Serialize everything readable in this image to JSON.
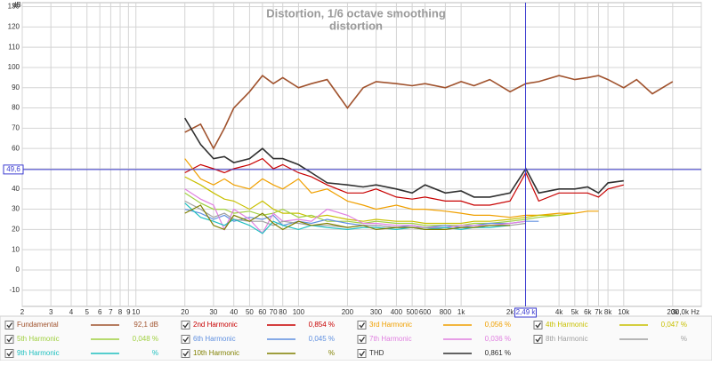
{
  "chart_data": {
    "type": "line",
    "title": "Distortion, 1/6 octave smoothing",
    "subtitle": "distortion",
    "y_unit": "dB",
    "xscale": "log",
    "xlim": [
      2,
      30000
    ],
    "ylim": [
      -18,
      132
    ],
    "grid": true,
    "xticks": [
      2,
      3,
      4,
      5,
      6,
      7,
      8,
      9,
      10,
      20,
      30,
      40,
      50,
      60,
      70,
      80,
      100,
      200,
      300,
      400,
      500,
      600,
      800,
      {
        "value": 1000,
        "label": "1k"
      },
      {
        "value": 2000,
        "label": "2k"
      },
      {
        "value": 4000,
        "label": "4k"
      },
      {
        "value": 5000,
        "label": "5k"
      },
      {
        "value": 6000,
        "label": "6k"
      },
      {
        "value": 7000,
        "label": "7k"
      },
      {
        "value": 8000,
        "label": "8k"
      },
      {
        "value": 10000,
        "label": "10k"
      },
      {
        "value": 20000,
        "label": "20k"
      },
      {
        "value": 30000,
        "label": "30,0k Hz"
      }
    ],
    "yticks": [
      -10,
      0,
      10,
      20,
      30,
      40,
      50,
      60,
      70,
      80,
      90,
      100,
      110,
      120,
      130
    ],
    "cursor": {
      "x": {
        "value": 2490,
        "label": "2,49 k"
      },
      "y": {
        "value": 49.6,
        "label": "49,6"
      }
    },
    "x": [
      20,
      25,
      30,
      35,
      40,
      50,
      60,
      70,
      80,
      100,
      120,
      150,
      200,
      250,
      300,
      400,
      500,
      600,
      800,
      1000,
      1200,
      1500,
      2000,
      2500,
      3000,
      4000,
      5000,
      6000,
      7000,
      8000,
      10000,
      12000,
      15000,
      20000
    ],
    "series": [
      {
        "name": "Fundamental",
        "color": "#a0522d",
        "readout": "92,1 dB",
        "values": [
          68,
          72,
          60,
          70,
          80,
          88,
          96,
          92,
          95,
          90,
          92,
          94,
          80,
          90,
          93,
          92,
          91,
          92,
          90,
          93,
          91,
          94,
          88,
          92,
          93,
          96,
          94,
          95,
          96,
          94,
          90,
          94,
          87,
          93
        ]
      },
      {
        "name": "2nd Harmonic",
        "color": "#c80000",
        "readout": "0,854 %",
        "values": [
          48,
          52,
          50,
          48,
          50,
          52,
          55,
          50,
          52,
          48,
          46,
          42,
          38,
          38,
          40,
          36,
          35,
          36,
          34,
          34,
          32,
          32,
          34,
          48,
          34,
          38,
          38,
          38,
          36,
          40,
          42,
          null,
          null,
          null
        ]
      },
      {
        "name": "3rd Harmonic",
        "color": "#f0a000",
        "readout": "0,056 %",
        "values": [
          55,
          45,
          42,
          45,
          42,
          40,
          45,
          42,
          40,
          45,
          38,
          40,
          34,
          32,
          30,
          32,
          30,
          30,
          29,
          28,
          27,
          27,
          26,
          27,
          27,
          28,
          28,
          29,
          29,
          null,
          null,
          null,
          null,
          null
        ]
      },
      {
        "name": "4th Harmonic",
        "color": "#c8c000",
        "readout": "0,047 %",
        "values": [
          46,
          42,
          38,
          35,
          34,
          30,
          34,
          30,
          28,
          28,
          26,
          27,
          25,
          24,
          25,
          24,
          24,
          23,
          23,
          23,
          24,
          24,
          25,
          26,
          27,
          27,
          28,
          null,
          null,
          null,
          null,
          null,
          null,
          null
        ]
      },
      {
        "name": "5th Harmonic",
        "color": "#a0d040",
        "readout": "0,048 %",
        "values": [
          38,
          33,
          30,
          30,
          28,
          29,
          27,
          28,
          30,
          26,
          27,
          24,
          24,
          23,
          24,
          23,
          23,
          22,
          22,
          22,
          23,
          23,
          24,
          25,
          26,
          27,
          null,
          null,
          null,
          null,
          null,
          null,
          null,
          null
        ]
      },
      {
        "name": "6th Harmonic",
        "color": "#6090e0",
        "readout": "0,045 %",
        "values": [
          30,
          28,
          25,
          27,
          24,
          26,
          25,
          27,
          22,
          24,
          23,
          25,
          23,
          22,
          22,
          21,
          22,
          21,
          22,
          21,
          22,
          23,
          23,
          24,
          24,
          null,
          null,
          null,
          null,
          null,
          null,
          null,
          null,
          null
        ]
      },
      {
        "name": "7th Harmonic",
        "color": "#e080e0",
        "readout": "0,036 %",
        "values": [
          40,
          35,
          32,
          20,
          30,
          25,
          18,
          28,
          24,
          25,
          24,
          30,
          27,
          23,
          23,
          22,
          22,
          21,
          21,
          22,
          22,
          22,
          23,
          24,
          null,
          null,
          null,
          null,
          null,
          null,
          null,
          null,
          null,
          null
        ]
      },
      {
        "name": "8th Harmonic",
        "color": "#a0a0a0",
        "readout": "%",
        "values": [
          34,
          30,
          26,
          28,
          25,
          24,
          24,
          22,
          24,
          23,
          22,
          22,
          21,
          22,
          22,
          21,
          21,
          21,
          20,
          21,
          21,
          22,
          22,
          23,
          null,
          null,
          null,
          null,
          null,
          null,
          null,
          null,
          null,
          null
        ]
      },
      {
        "name": "9th Harmonic",
        "color": "#20c0c0",
        "readout": "%",
        "values": [
          33,
          26,
          24,
          22,
          25,
          22,
          18,
          24,
          22,
          20,
          22,
          21,
          20,
          21,
          21,
          20,
          21,
          20,
          21,
          20,
          21,
          21,
          22,
          null,
          null,
          null,
          null,
          null,
          null,
          null,
          null,
          null,
          null,
          null
        ]
      },
      {
        "name": "10th Harmonic",
        "color": "#808000",
        "readout": "%",
        "values": [
          28,
          32,
          22,
          20,
          27,
          24,
          28,
          23,
          20,
          24,
          22,
          23,
          21,
          22,
          20,
          21,
          21,
          20,
          20,
          21,
          21,
          22,
          22,
          null,
          null,
          null,
          null,
          null,
          null,
          null,
          null,
          null,
          null,
          null
        ]
      },
      {
        "name": "THD",
        "color": "#303030",
        "readout": "0,861 %",
        "values": [
          75,
          62,
          55,
          56,
          53,
          55,
          60,
          55,
          55,
          52,
          48,
          43,
          42,
          41,
          42,
          40,
          38,
          42,
          38,
          39,
          36,
          36,
          38,
          50,
          38,
          40,
          40,
          41,
          38,
          43,
          44,
          null,
          null,
          null
        ]
      }
    ]
  }
}
